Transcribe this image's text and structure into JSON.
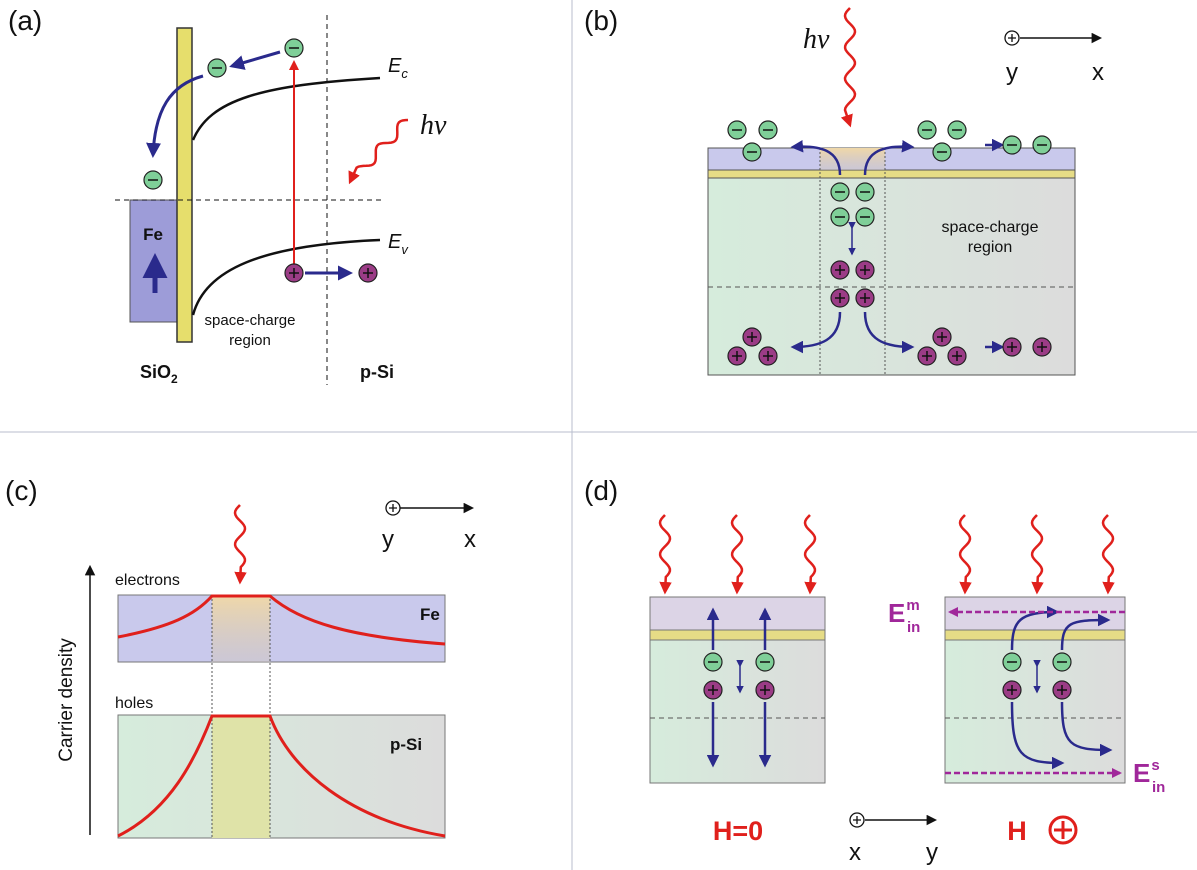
{
  "a": {
    "label": "(a)",
    "ec": {
      "main": "E",
      "sub": "c"
    },
    "ev": {
      "main": "E",
      "sub": "v"
    },
    "photon": "hν",
    "metal": "Fe",
    "scr": [
      "space-charge",
      "region"
    ],
    "oxide": {
      "main": "SiO",
      "sub": "2"
    },
    "semi": "p-Si"
  },
  "b": {
    "label": "(b)",
    "photon": "hν",
    "axis_y": "y",
    "axis_x": "x",
    "scr": [
      "space-charge",
      "region"
    ]
  },
  "c": {
    "label": "(c)",
    "axis_y": "y",
    "axis_x": "x",
    "electrons": "electrons",
    "metal": "Fe",
    "holes": "holes",
    "semi": "p-Si",
    "ylabel": "Carrier density"
  },
  "d": {
    "label": "(d)",
    "em": {
      "main": "E",
      "sub": "in",
      "sup": "m"
    },
    "es": {
      "main": "E",
      "sub": "in",
      "sup": "s"
    },
    "h0": "H=0",
    "h": "H",
    "axis_x": "x",
    "axis_y": "y"
  }
}
